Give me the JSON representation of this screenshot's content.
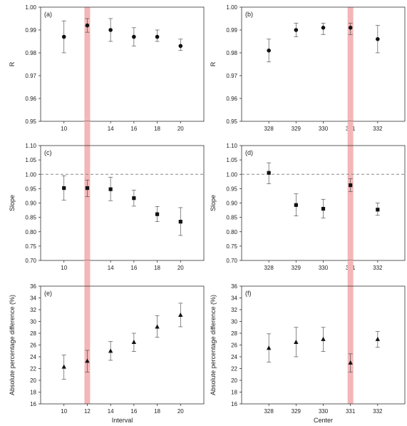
{
  "figure": {
    "highlight_color": "#f4b6b8",
    "reference_line_color": "#888888",
    "marker_color": "#111111"
  },
  "chart_data": [
    {
      "panel": "(a)",
      "type": "scatter",
      "marker": "circle",
      "xlabel": "",
      "ylabel": "R",
      "categories": [
        "10",
        "12",
        "14",
        "16",
        "18",
        "20"
      ],
      "values": [
        0.987,
        0.992,
        0.99,
        0.987,
        0.987,
        0.983
      ],
      "err_low": [
        0.98,
        0.989,
        0.985,
        0.983,
        0.985,
        0.981
      ],
      "err_high": [
        0.994,
        0.995,
        0.995,
        0.991,
        0.99,
        0.986
      ],
      "ylim": [
        0.95,
        1.0
      ],
      "yticks": [
        "0.95",
        "0.96",
        "0.97",
        "0.98",
        "0.99",
        "1.00"
      ],
      "highlight_category": "12"
    },
    {
      "panel": "(b)",
      "type": "scatter",
      "marker": "circle",
      "xlabel": "",
      "ylabel": "R",
      "categories": [
        "328",
        "329",
        "330",
        "331",
        "332"
      ],
      "values": [
        0.981,
        0.99,
        0.991,
        0.991,
        0.986
      ],
      "err_low": [
        0.976,
        0.987,
        0.988,
        0.988,
        0.98
      ],
      "err_high": [
        0.986,
        0.993,
        0.993,
        0.993,
        0.992
      ],
      "ylim": [
        0.95,
        1.0
      ],
      "yticks": [
        "0.95",
        "0.96",
        "0.97",
        "0.98",
        "0.99",
        "1.00"
      ],
      "highlight_category": "331"
    },
    {
      "panel": "(c)",
      "type": "scatter",
      "marker": "square",
      "xlabel": "",
      "ylabel": "Slope",
      "categories": [
        "10",
        "12",
        "14",
        "16",
        "18",
        "20"
      ],
      "values": [
        0.952,
        0.952,
        0.948,
        0.917,
        0.861,
        0.835
      ],
      "err_low": [
        0.91,
        0.922,
        0.908,
        0.889,
        0.835,
        0.787
      ],
      "err_high": [
        0.995,
        0.98,
        0.99,
        0.945,
        0.888,
        0.884
      ],
      "ylim": [
        0.7,
        1.1
      ],
      "yticks": [
        "0.70",
        "0.75",
        "0.80",
        "0.85",
        "0.90",
        "0.95",
        "1.00",
        "1.05",
        "1.10"
      ],
      "reference_line": 1.0,
      "highlight_category": "12"
    },
    {
      "panel": "(d)",
      "type": "scatter",
      "marker": "square",
      "xlabel": "",
      "ylabel": "Slope",
      "categories": [
        "328",
        "329",
        "330",
        "331",
        "332"
      ],
      "values": [
        1.005,
        0.893,
        0.88,
        0.962,
        0.877
      ],
      "err_low": [
        0.967,
        0.855,
        0.848,
        0.94,
        0.857
      ],
      "err_high": [
        1.04,
        0.932,
        0.913,
        0.985,
        0.9
      ],
      "ylim": [
        0.7,
        1.1
      ],
      "yticks": [
        "0.70",
        "0.75",
        "0.80",
        "0.85",
        "0.90",
        "0.95",
        "1.00",
        "1.05",
        "1.10"
      ],
      "reference_line": 1.0,
      "highlight_category": "331"
    },
    {
      "panel": "(e)",
      "type": "scatter",
      "marker": "triangle",
      "xlabel": "Interval",
      "ylabel": "Absolute percentage difference (%)",
      "categories": [
        "10",
        "12",
        "14",
        "16",
        "18",
        "20"
      ],
      "values": [
        22.3,
        23.3,
        25.0,
        26.5,
        29.1,
        31.1
      ],
      "err_low": [
        20.2,
        21.4,
        23.4,
        24.9,
        27.3,
        29.1
      ],
      "err_high": [
        24.3,
        25.1,
        26.6,
        28.0,
        31.0,
        33.1
      ],
      "ylim": [
        16,
        36
      ],
      "yticks": [
        "16",
        "18",
        "20",
        "22",
        "24",
        "26",
        "28",
        "30",
        "32",
        "34",
        "36"
      ],
      "highlight_category": "12"
    },
    {
      "panel": "(f)",
      "type": "scatter",
      "marker": "triangle",
      "xlabel": "Center",
      "ylabel": "Absolute percentage difference (%)",
      "categories": [
        "328",
        "329",
        "330",
        "331",
        "332"
      ],
      "values": [
        25.5,
        26.5,
        27.0,
        23.0,
        27.0
      ],
      "err_low": [
        23.1,
        24.0,
        24.9,
        21.4,
        25.6
      ],
      "err_high": [
        27.9,
        29.0,
        29.0,
        24.5,
        28.3
      ],
      "ylim": [
        16,
        36
      ],
      "yticks": [
        "16",
        "18",
        "20",
        "22",
        "24",
        "26",
        "28",
        "30",
        "32",
        "34",
        "36"
      ],
      "highlight_category": "331"
    }
  ]
}
